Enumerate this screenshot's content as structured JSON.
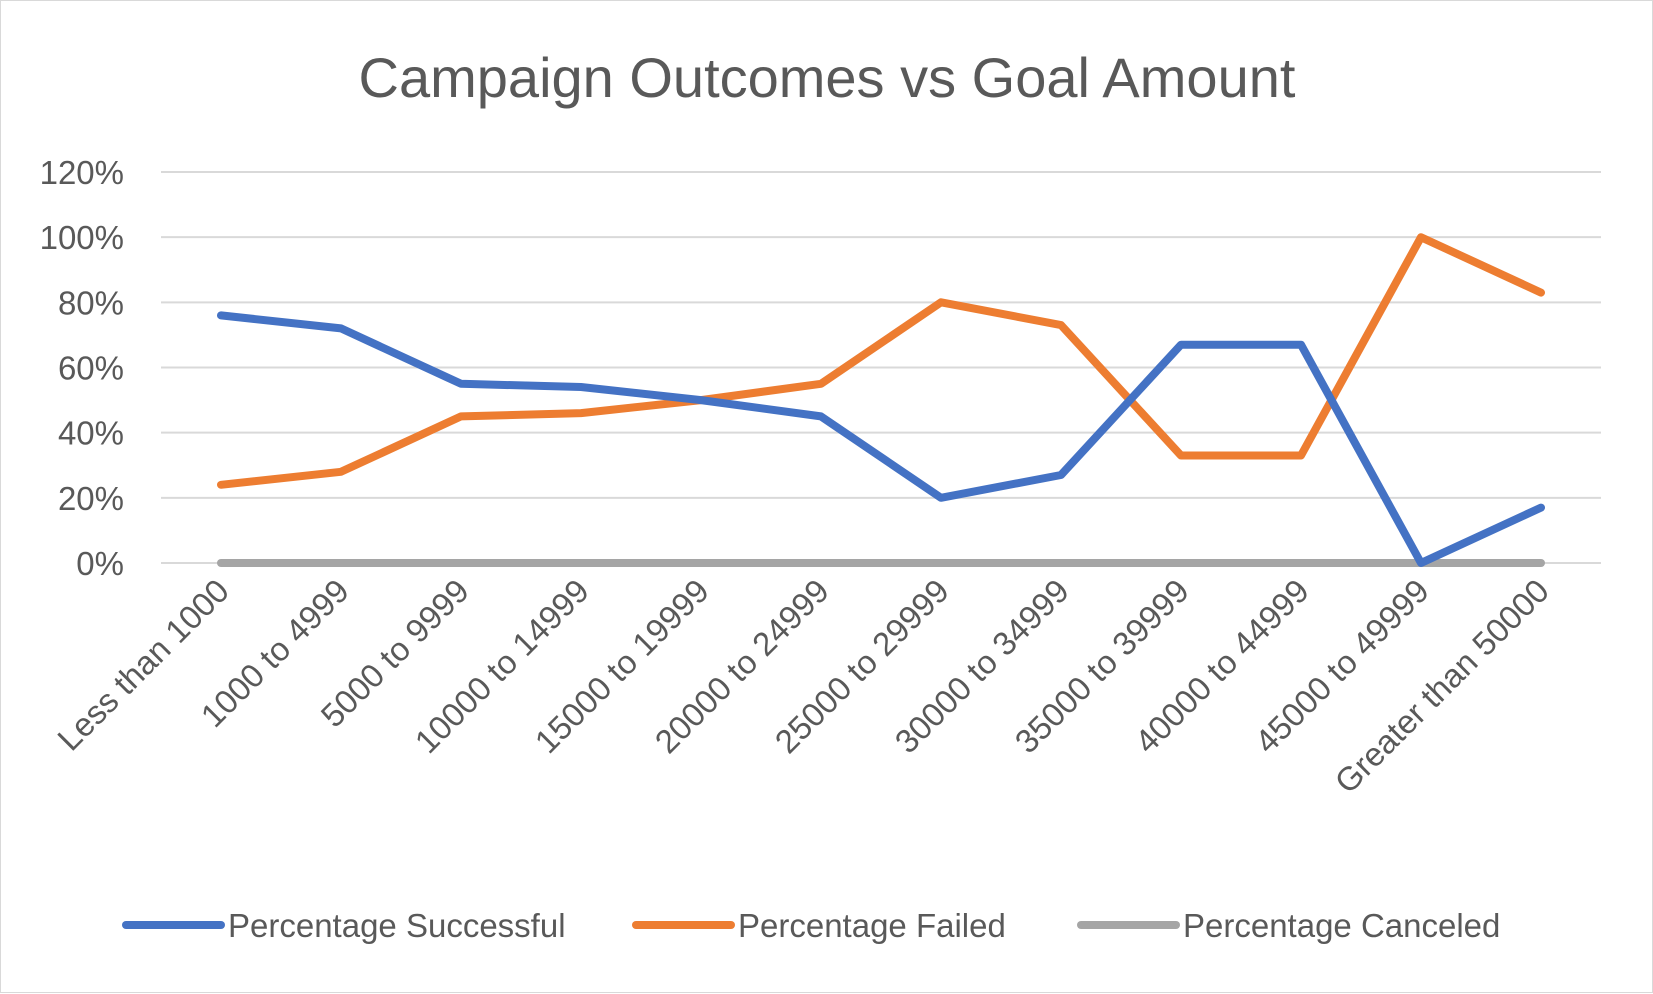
{
  "chart_data": {
    "type": "line",
    "title": "Campaign Outcomes vs Goal Amount",
    "xlabel": "",
    "ylabel": "",
    "ylim": [
      0,
      1.2
    ],
    "yticks": [
      "0%",
      "20%",
      "40%",
      "60%",
      "80%",
      "100%",
      "120%"
    ],
    "grid": true,
    "legend_position": "bottom",
    "categories": [
      "Less than 1000",
      "1000 to 4999",
      "5000 to 9999",
      "10000 to 14999",
      "15000 to 19999",
      "20000 to 24999",
      "25000 to 29999",
      "30000 to 34999",
      "35000 to 39999",
      "40000 to 44999",
      "45000 to 49999",
      "Greater than 50000"
    ],
    "series": [
      {
        "name": "Percentage Successful",
        "color": "#4472c4",
        "values": [
          0.76,
          0.72,
          0.55,
          0.54,
          0.5,
          0.45,
          0.2,
          0.27,
          0.67,
          0.67,
          0.0,
          0.17
        ]
      },
      {
        "name": "Percentage Failed",
        "color": "#ed7d31",
        "values": [
          0.24,
          0.28,
          0.45,
          0.46,
          0.5,
          0.55,
          0.8,
          0.73,
          0.33,
          0.33,
          1.0,
          0.83
        ]
      },
      {
        "name": "Percentage Canceled",
        "color": "#a5a5a5",
        "values": [
          0,
          0,
          0,
          0,
          0,
          0,
          0,
          0,
          0,
          0,
          0,
          0
        ]
      }
    ]
  }
}
